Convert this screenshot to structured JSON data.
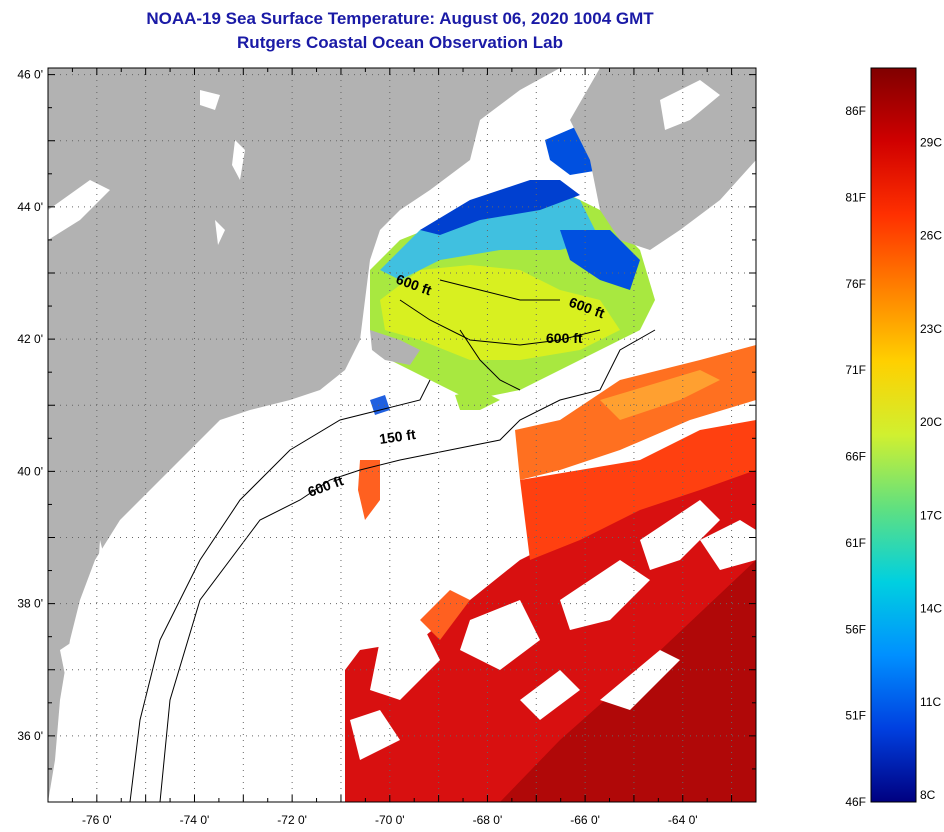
{
  "title": "NOAA-19 Sea Surface Temperature:  August 06, 2020 1004 GMT",
  "subtitle": "Rutgers Coastal Ocean Observation Lab",
  "map": {
    "lat_labels": [
      "46 0'",
      "44 0'",
      "42 0'",
      "40 0'",
      "38 0'",
      "36 0'"
    ],
    "lat_values": [
      46,
      44,
      42,
      40,
      38,
      36
    ],
    "lon_labels": [
      "-76 0'",
      "-74 0'",
      "-72 0'",
      "-70 0'",
      "-68 0'",
      "-66 0'",
      "-64 0'"
    ],
    "lon_values": [
      -76,
      -74,
      -72,
      -70,
      -68,
      -66,
      -64
    ],
    "lat_range": [
      35,
      46.1
    ],
    "lon_range": [
      -77,
      -62.5
    ],
    "contour_labels": [
      "600 ft",
      "600 ft",
      "600 ft",
      "150 ft",
      "600 ft"
    ],
    "colors": {
      "land": "#b2b2b2",
      "cloud": "#ffffff",
      "grid": "#555555"
    }
  },
  "colorbar": {
    "f_labels": [
      "86F",
      "81F",
      "76F",
      "71F",
      "66F",
      "61F",
      "56F",
      "51F",
      "46F"
    ],
    "c_labels": [
      "29C",
      "26C",
      "23C",
      "20C",
      "17C",
      "14C",
      "11C",
      "8C"
    ],
    "gradient": [
      "#800000",
      "#d00000",
      "#ff3000",
      "#ff8000",
      "#ffd000",
      "#d0f030",
      "#60e080",
      "#00d0e0",
      "#0090ff",
      "#0040e0",
      "#000080"
    ]
  }
}
